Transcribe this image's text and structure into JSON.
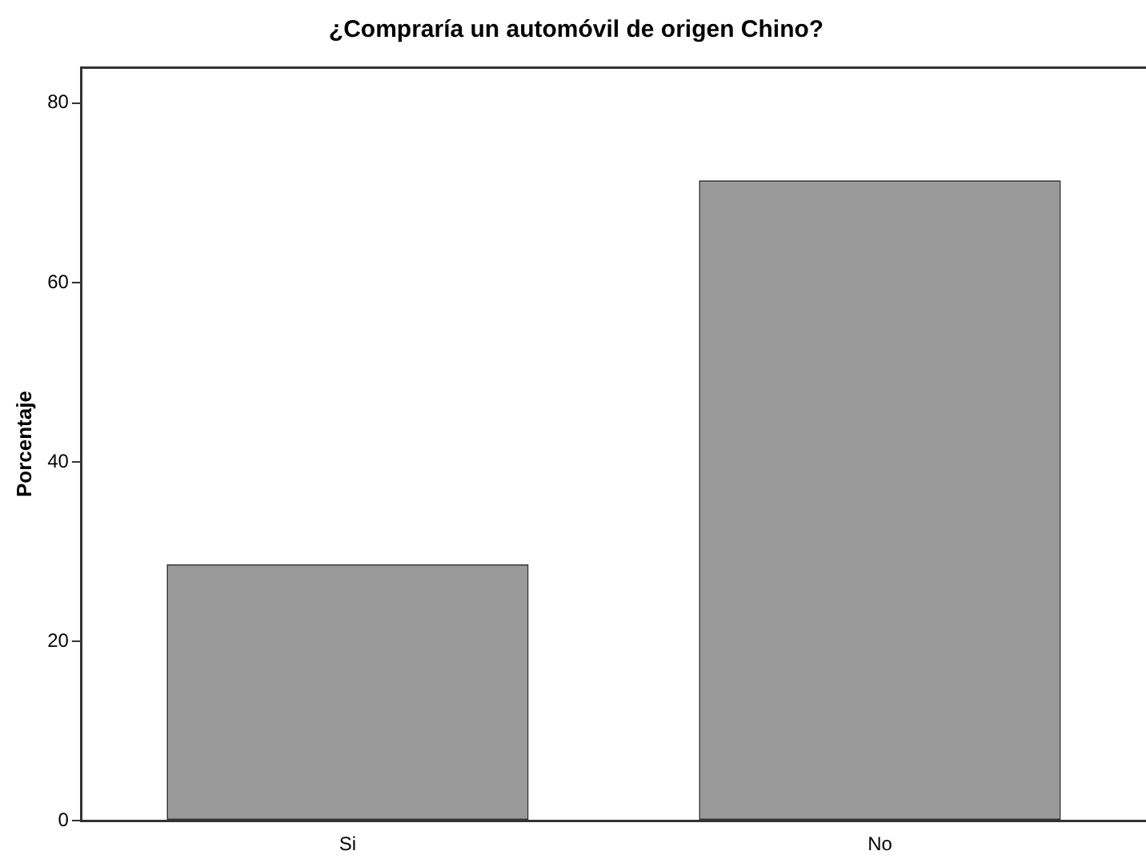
{
  "chart_data": {
    "type": "bar",
    "title": "¿Compraría un automóvil de origen Chino?",
    "ylabel": "Porcentaje",
    "categories": [
      "Si",
      "No"
    ],
    "values": [
      28.6,
      71.4
    ],
    "color": "#999999",
    "ylim": [
      0,
      84
    ],
    "yticks": [
      0,
      20,
      40,
      60,
      80
    ],
    "grid": false,
    "legend": false
  }
}
